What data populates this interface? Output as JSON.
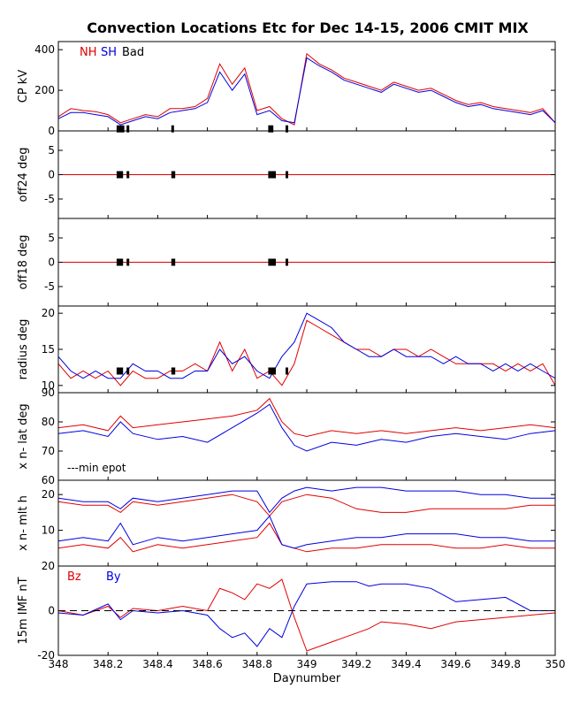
{
  "title": "Convection Locations Etc for Dec 14-15, 2006 CMIT MIX",
  "colors": {
    "nh": "#e00000",
    "sh": "#0000e0",
    "bad": "#000000",
    "axis": "#000000"
  },
  "chart_data": [
    {
      "type": "line",
      "ylabel": "CP kV",
      "ylim": [
        0,
        440
      ],
      "yticks": [
        "0",
        "200",
        "400"
      ],
      "yticks_values": [
        0,
        200,
        400
      ],
      "legend": [
        {
          "label": "NH",
          "color": "#e00000"
        },
        {
          "label": "SH",
          "color": "#0000e0"
        },
        {
          "label": "Bad",
          "color": "#000000"
        }
      ],
      "series": [
        {
          "name": "NH",
          "color": "#e00000",
          "x": [
            348.0,
            348.05,
            348.1,
            348.15,
            348.2,
            348.25,
            348.3,
            348.35,
            348.4,
            348.45,
            348.5,
            348.55,
            348.6,
            348.65,
            348.7,
            348.75,
            348.8,
            348.85,
            348.9,
            348.95,
            349.0,
            349.05,
            349.1,
            349.15,
            349.2,
            349.25,
            349.3,
            349.35,
            349.4,
            349.45,
            349.5,
            349.55,
            349.6,
            349.65,
            349.7,
            349.75,
            349.8,
            349.85,
            349.9,
            349.95,
            350.0
          ],
          "y": [
            70,
            110,
            100,
            95,
            80,
            40,
            60,
            80,
            70,
            110,
            110,
            120,
            160,
            330,
            230,
            310,
            100,
            120,
            60,
            30,
            380,
            330,
            300,
            260,
            240,
            220,
            200,
            240,
            220,
            200,
            210,
            180,
            150,
            130,
            140,
            120,
            110,
            100,
            90,
            110,
            40
          ]
        },
        {
          "name": "SH",
          "color": "#0000e0",
          "x": [
            348.0,
            348.05,
            348.1,
            348.15,
            348.2,
            348.25,
            348.3,
            348.35,
            348.4,
            348.45,
            348.5,
            348.55,
            348.6,
            348.65,
            348.7,
            348.75,
            348.8,
            348.85,
            348.9,
            348.95,
            349.0,
            349.05,
            349.1,
            349.15,
            349.2,
            349.25,
            349.3,
            349.35,
            349.4,
            349.45,
            349.5,
            349.55,
            349.6,
            349.65,
            349.7,
            349.75,
            349.8,
            349.85,
            349.9,
            349.95,
            350.0
          ],
          "y": [
            60,
            90,
            90,
            80,
            70,
            30,
            50,
            70,
            60,
            90,
            100,
            110,
            140,
            290,
            200,
            280,
            80,
            100,
            50,
            40,
            360,
            320,
            290,
            250,
            230,
            210,
            190,
            230,
            210,
            190,
            200,
            170,
            140,
            120,
            130,
            110,
            100,
            90,
            80,
            100,
            40
          ]
        }
      ],
      "bad_times": [
        348.24,
        348.25,
        348.26,
        348.28,
        348.46,
        348.85,
        348.86,
        348.92
      ]
    },
    {
      "type": "line",
      "ylabel": "off24 deg",
      "ylim": [
        -9,
        9
      ],
      "yticks": [
        "-5",
        "0",
        "5"
      ],
      "yticks_values": [
        -5,
        0,
        5
      ],
      "series": [
        {
          "name": "NH",
          "color": "#e00000",
          "x": [
            348.0,
            350.0
          ],
          "y": [
            0,
            0
          ]
        }
      ],
      "bad_times": [
        348.24,
        348.245,
        348.25,
        348.255,
        348.28,
        348.46,
        348.465,
        348.85,
        348.86,
        348.87,
        348.92
      ]
    },
    {
      "type": "line",
      "ylabel": "off18 deg",
      "ylim": [
        -9,
        9
      ],
      "yticks": [
        "-5",
        "0",
        "5"
      ],
      "yticks_values": [
        -5,
        0,
        5
      ],
      "series": [
        {
          "name": "NH",
          "color": "#e00000",
          "x": [
            348.0,
            350.0
          ],
          "y": [
            0,
            0
          ]
        }
      ],
      "bad_times": [
        348.24,
        348.245,
        348.25,
        348.255,
        348.28,
        348.46,
        348.465,
        348.85,
        348.86,
        348.87,
        348.92
      ]
    },
    {
      "type": "line",
      "ylabel": "radius deg",
      "ylim": [
        9,
        21
      ],
      "yticks": [
        "10",
        "15",
        "20"
      ],
      "yticks_values": [
        10,
        15,
        20
      ],
      "series": [
        {
          "name": "NH",
          "color": "#e00000",
          "x": [
            348.0,
            348.05,
            348.1,
            348.15,
            348.2,
            348.25,
            348.3,
            348.35,
            348.4,
            348.45,
            348.5,
            348.55,
            348.6,
            348.65,
            348.7,
            348.75,
            348.8,
            348.85,
            348.9,
            348.95,
            349.0,
            349.05,
            349.1,
            349.15,
            349.2,
            349.25,
            349.3,
            349.35,
            349.4,
            349.45,
            349.5,
            349.55,
            349.6,
            349.65,
            349.7,
            349.75,
            349.8,
            349.85,
            349.9,
            349.95,
            350.0
          ],
          "y": [
            13,
            11,
            12,
            11,
            12,
            10,
            12,
            11,
            11,
            12,
            12,
            13,
            12,
            16,
            12,
            15,
            11,
            12,
            10,
            13,
            19,
            18,
            17,
            16,
            15,
            15,
            14,
            15,
            15,
            14,
            15,
            14,
            13,
            13,
            13,
            13,
            12,
            13,
            12,
            13,
            10
          ]
        },
        {
          "name": "SH",
          "color": "#0000e0",
          "x": [
            348.0,
            348.05,
            348.1,
            348.15,
            348.2,
            348.25,
            348.3,
            348.35,
            348.4,
            348.45,
            348.5,
            348.55,
            348.6,
            348.65,
            348.7,
            348.75,
            348.8,
            348.85,
            348.9,
            348.95,
            349.0,
            349.05,
            349.1,
            349.15,
            349.2,
            349.25,
            349.3,
            349.35,
            349.4,
            349.45,
            349.5,
            349.55,
            349.6,
            349.65,
            349.7,
            349.75,
            349.8,
            349.85,
            349.9,
            349.95,
            350.0
          ],
          "y": [
            14,
            12,
            11,
            12,
            11,
            11,
            13,
            12,
            12,
            11,
            11,
            12,
            12,
            15,
            13,
            14,
            12,
            11,
            14,
            16,
            20,
            19,
            18,
            16,
            15,
            14,
            14,
            15,
            14,
            14,
            14,
            13,
            14,
            13,
            13,
            12,
            13,
            12,
            13,
            12,
            11
          ]
        }
      ],
      "bad_times": [
        348.24,
        348.245,
        348.25,
        348.255,
        348.28,
        348.46,
        348.465,
        348.85,
        348.86,
        348.87,
        348.92
      ]
    },
    {
      "type": "line",
      "ylabel": "x n- lat deg",
      "ylim": [
        60,
        90
      ],
      "yticks": [
        "60",
        "70",
        "80",
        "90"
      ],
      "yticks_values": [
        60,
        70,
        80,
        90
      ],
      "annotation": "---min epot",
      "series": [
        {
          "name": "NH",
          "color": "#e00000",
          "x": [
            348.0,
            348.1,
            348.2,
            348.25,
            348.3,
            348.4,
            348.5,
            348.6,
            348.7,
            348.8,
            348.85,
            348.9,
            348.95,
            349.0,
            349.1,
            349.2,
            349.3,
            349.4,
            349.5,
            349.6,
            349.7,
            349.8,
            349.9,
            350.0
          ],
          "y": [
            78,
            79,
            77,
            82,
            78,
            79,
            80,
            81,
            82,
            84,
            88,
            80,
            76,
            75,
            77,
            76,
            77,
            76,
            77,
            78,
            77,
            78,
            79,
            78
          ]
        },
        {
          "name": "SH",
          "color": "#0000e0",
          "x": [
            348.0,
            348.1,
            348.2,
            348.25,
            348.3,
            348.4,
            348.5,
            348.6,
            348.7,
            348.8,
            348.85,
            348.9,
            348.95,
            349.0,
            349.1,
            349.2,
            349.3,
            349.4,
            349.5,
            349.6,
            349.7,
            349.8,
            349.9,
            350.0
          ],
          "y": [
            76,
            77,
            75,
            80,
            76,
            74,
            75,
            73,
            78,
            83,
            86,
            78,
            72,
            70,
            73,
            72,
            74,
            73,
            75,
            76,
            75,
            74,
            76,
            77
          ]
        }
      ]
    },
    {
      "type": "line",
      "ylabel": "x n- mlt h",
      "ylim": [
        0,
        24
      ],
      "yticks": [
        "10",
        "20"
      ],
      "yticks_values": [
        10,
        20
      ],
      "series": [
        {
          "name": "NH",
          "color": "#e00000",
          "x": [
            348.0,
            348.1,
            348.2,
            348.25,
            348.3,
            348.4,
            348.5,
            348.6,
            348.7,
            348.8,
            348.85,
            348.9,
            348.95,
            349.0,
            349.1,
            349.2,
            349.3,
            349.4,
            349.5,
            349.6,
            349.7,
            349.8,
            349.9,
            350.0
          ],
          "y": [
            18,
            17,
            17,
            15,
            18,
            17,
            18,
            19,
            20,
            18,
            14,
            18,
            19,
            20,
            19,
            16,
            15,
            15,
            16,
            16,
            16,
            16,
            17,
            17
          ]
        },
        {
          "name": "SH",
          "color": "#0000e0",
          "x": [
            348.0,
            348.1,
            348.2,
            348.25,
            348.3,
            348.4,
            348.5,
            348.6,
            348.7,
            348.8,
            348.85,
            348.9,
            348.95,
            349.0,
            349.1,
            349.2,
            349.3,
            349.4,
            349.5,
            349.6,
            349.7,
            349.8,
            349.9,
            350.0
          ],
          "y": [
            19,
            18,
            18,
            16,
            19,
            18,
            19,
            20,
            21,
            21,
            15,
            19,
            21,
            22,
            21,
            22,
            22,
            21,
            21,
            21,
            20,
            20,
            19,
            19
          ]
        },
        {
          "name": "NH",
          "color": "#e00000",
          "x": [
            348.0,
            348.1,
            348.2,
            348.25,
            348.3,
            348.4,
            348.5,
            348.6,
            348.7,
            348.8,
            348.85,
            348.9,
            348.95,
            349.0,
            349.1,
            349.2,
            349.3,
            349.4,
            349.5,
            349.6,
            349.7,
            349.8,
            349.9,
            350.0
          ],
          "y": [
            5,
            6,
            5,
            8,
            4,
            6,
            5,
            6,
            7,
            8,
            12,
            6,
            5,
            4,
            5,
            5,
            6,
            6,
            6,
            5,
            5,
            6,
            5,
            5
          ]
        },
        {
          "name": "SH",
          "color": "#0000e0",
          "x": [
            348.0,
            348.1,
            348.2,
            348.25,
            348.3,
            348.4,
            348.5,
            348.6,
            348.7,
            348.8,
            348.85,
            348.9,
            348.95,
            349.0,
            349.1,
            349.2,
            349.3,
            349.4,
            349.5,
            349.6,
            349.7,
            349.8,
            349.9,
            350.0
          ],
          "y": [
            7,
            8,
            7,
            12,
            6,
            8,
            7,
            8,
            9,
            10,
            14,
            6,
            5,
            6,
            7,
            8,
            8,
            9,
            9,
            9,
            8,
            8,
            7,
            7
          ]
        }
      ]
    },
    {
      "type": "line",
      "ylabel": "15m IMF nT",
      "ylim": [
        -20,
        20
      ],
      "yticks": [
        "-20",
        "0",
        "20"
      ],
      "yticks_values": [
        -20,
        0,
        20
      ],
      "xlabel": "Daynumber",
      "xlim": [
        348,
        350
      ],
      "xticks": [
        "348",
        "348.2",
        "348.4",
        "348.6",
        "348.8",
        "349",
        "349.2",
        "349.4",
        "349.6",
        "349.8",
        "350"
      ],
      "xticks_values": [
        348,
        348.2,
        348.4,
        348.6,
        348.8,
        349,
        349.2,
        349.4,
        349.6,
        349.8,
        350
      ],
      "series": [
        {
          "name": "Bz",
          "color": "#e00000",
          "x": [
            348.0,
            348.1,
            348.2,
            348.25,
            348.3,
            348.4,
            348.5,
            348.6,
            348.65,
            348.7,
            348.75,
            348.8,
            348.85,
            348.9,
            348.95,
            349.0,
            349.1,
            349.2,
            349.25,
            349.3,
            349.4,
            349.5,
            349.6,
            349.7,
            349.8,
            349.9,
            350.0
          ],
          "y": [
            0,
            -2,
            2,
            -3,
            1,
            0,
            2,
            0,
            10,
            8,
            5,
            12,
            10,
            14,
            -3,
            -18,
            -14,
            -10,
            -8,
            -5,
            -6,
            -8,
            -5,
            -4,
            -3,
            -2,
            -1
          ]
        },
        {
          "name": "By",
          "color": "#0000e0",
          "x": [
            348.0,
            348.1,
            348.2,
            348.25,
            348.3,
            348.4,
            348.5,
            348.6,
            348.65,
            348.7,
            348.75,
            348.8,
            348.85,
            348.9,
            348.95,
            349.0,
            349.1,
            349.2,
            349.25,
            349.3,
            349.4,
            349.5,
            349.6,
            349.7,
            349.8,
            349.9,
            350.0
          ],
          "y": [
            -1,
            -2,
            3,
            -4,
            0,
            -1,
            0,
            -2,
            -8,
            -12,
            -10,
            -16,
            -8,
            -12,
            2,
            12,
            13,
            13,
            11,
            12,
            12,
            10,
            4,
            5,
            6,
            0,
            0
          ]
        }
      ]
    }
  ]
}
